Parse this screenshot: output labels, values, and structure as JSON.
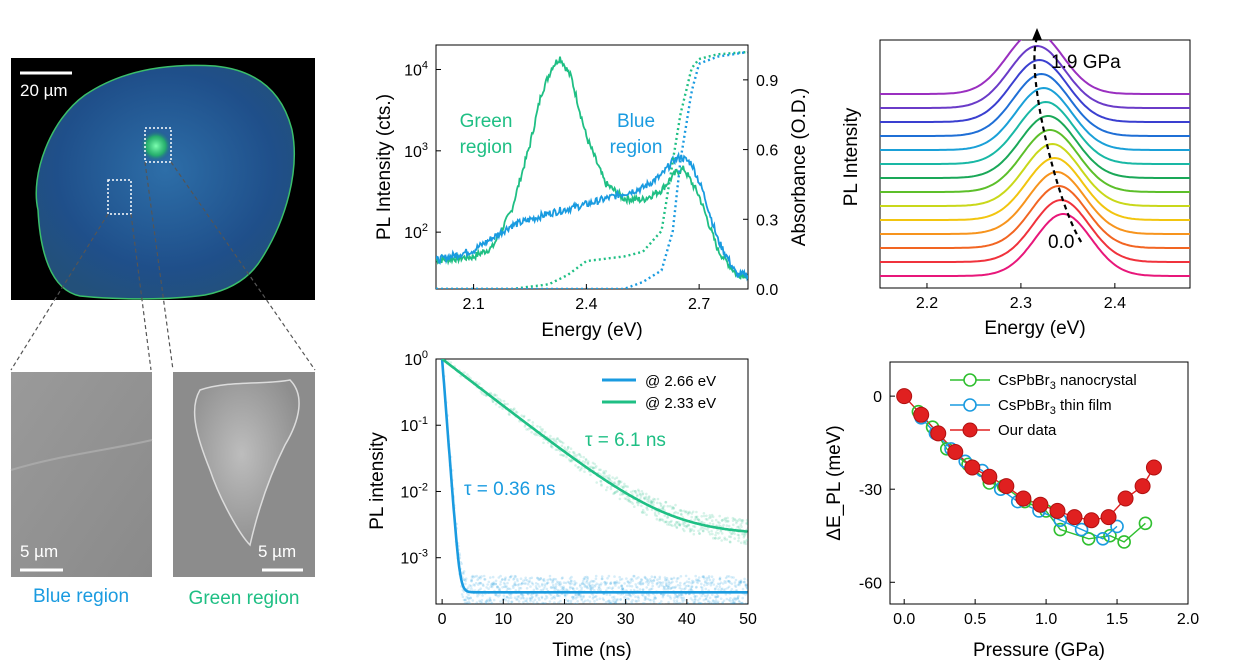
{
  "micrograph": {
    "scale_top": "20 µm",
    "scale_blue": "5 µm",
    "scale_green": "5 µm",
    "caption_blue": "Blue region",
    "caption_green": "Green region",
    "colors": {
      "blue_caption": "#1a9be0",
      "green_caption": "#1fbf84"
    }
  },
  "chart_data": [
    {
      "id": "pl-absorbance",
      "type": "line",
      "xlabel": "Energy (eV)",
      "ylabel": "PL Intensity (cts.)",
      "y2label": "Absorbance (O.D.)",
      "xlim": [
        2.0,
        2.83
      ],
      "ylim": [
        20,
        20000
      ],
      "yscale": "log",
      "y2lim": [
        0,
        1.05
      ],
      "xticks": [
        "2.1",
        "2.4",
        "2.7"
      ],
      "yticks": [
        "10^2",
        "10^3",
        "10^4"
      ],
      "y2ticks": [
        "0.0",
        "0.3",
        "0.6",
        "0.9"
      ],
      "annotations": [
        {
          "line1": "Green",
          "line2": "region",
          "color": "#1fbf84"
        },
        {
          "line1": "Blue",
          "line2": "region",
          "color": "#1a9be0"
        }
      ],
      "series": [
        {
          "color": "#1fbf84",
          "style": "solid",
          "axis": "left",
          "x": [
            2.0,
            2.1,
            2.15,
            2.2,
            2.25,
            2.28,
            2.31,
            2.33,
            2.36,
            2.4,
            2.45,
            2.5,
            2.55,
            2.6,
            2.64,
            2.66,
            2.7,
            2.75,
            2.8
          ],
          "y": [
            45,
            50,
            65,
            180,
            1200,
            5000,
            11000,
            14000,
            8000,
            1500,
            400,
            260,
            250,
            330,
            550,
            600,
            280,
            60,
            30
          ]
        },
        {
          "color": "#1a9be0",
          "style": "solid",
          "axis": "left",
          "x": [
            2.0,
            2.1,
            2.2,
            2.3,
            2.4,
            2.5,
            2.55,
            2.6,
            2.63,
            2.65,
            2.68,
            2.71,
            2.75,
            2.8
          ],
          "y": [
            45,
            60,
            120,
            170,
            220,
            300,
            350,
            500,
            750,
            850,
            700,
            320,
            80,
            30
          ]
        },
        {
          "color": "#1fbf84",
          "style": "dotted",
          "axis": "right",
          "x": [
            2.0,
            2.2,
            2.3,
            2.35,
            2.4,
            2.5,
            2.55,
            2.6,
            2.62,
            2.65,
            2.68,
            2.7,
            2.75,
            2.83
          ],
          "y": [
            0.0,
            0.0,
            0.02,
            0.06,
            0.12,
            0.14,
            0.16,
            0.25,
            0.45,
            0.75,
            0.95,
            0.99,
            1.01,
            1.02
          ]
        },
        {
          "color": "#1a9be0",
          "style": "dotted",
          "axis": "right",
          "x": [
            2.0,
            2.5,
            2.55,
            2.6,
            2.63,
            2.65,
            2.68,
            2.7,
            2.75,
            2.83
          ],
          "y": [
            0.0,
            0.0,
            0.03,
            0.08,
            0.25,
            0.55,
            0.85,
            0.97,
            1.0,
            1.02
          ]
        }
      ]
    },
    {
      "id": "pressure-pl",
      "type": "line",
      "xlabel": "Energy (eV)",
      "ylabel": "PL Intensity",
      "xlim": [
        2.15,
        2.48
      ],
      "xticks": [
        "2.2",
        "2.3",
        "2.4"
      ],
      "annotations": [
        "1.9 GPa",
        "0.0"
      ],
      "offset_spectra": 14,
      "peak_energy_start": 2.345,
      "peak_energy_end": 2.315,
      "colors": [
        "#e8177a",
        "#f0323c",
        "#f26522",
        "#f7941d",
        "#f2c50f",
        "#c9d81a",
        "#5cbf2a",
        "#1aa858",
        "#19b8a5",
        "#1aa0d8",
        "#1f6fd6",
        "#3a3fd0",
        "#6a3bc8",
        "#9a2fc0"
      ]
    },
    {
      "id": "pl-decay",
      "type": "line",
      "xlabel": "Time (ns)",
      "ylabel": "PL intensity",
      "xlim": [
        -1,
        50
      ],
      "ylim": [
        0.0002,
        1
      ],
      "yscale": "log",
      "xticks": [
        "0",
        "10",
        "20",
        "30",
        "40",
        "50"
      ],
      "yticks": [
        "10^0",
        "10^-1",
        "10^-2",
        "10^-3"
      ],
      "legend": [
        "@ 2.66 eV",
        "@ 2.33 eV"
      ],
      "annotations": [
        "τ = 6.1 ns",
        "τ = 0.36 ns"
      ],
      "series": [
        {
          "name": "@ 2.66 eV",
          "color": "#1a9be0",
          "tau_ns": 0.36,
          "baseline": 0.0003
        },
        {
          "name": "@ 2.33 eV",
          "color": "#1fbf84",
          "tau_ns": 6.1,
          "baseline": 0.0022
        }
      ]
    },
    {
      "id": "shift-vs-pressure",
      "type": "scatter",
      "xlabel": "Pressure (GPa)",
      "ylabel": "ΔE_PL (meV)",
      "xlim": [
        -0.1,
        2.0
      ],
      "ylim": [
        -67,
        11
      ],
      "xticks": [
        "0.0",
        "0.5",
        "1.0",
        "1.5",
        "2.0"
      ],
      "yticks": [
        "0",
        "-30",
        "-60"
      ],
      "legend_placement": "top-left",
      "series": [
        {
          "name": "CsPbBr3 nanocrystal",
          "color": "#2fbf2f",
          "marker": "open-circle",
          "x": [
            0.1,
            0.2,
            0.3,
            0.45,
            0.6,
            0.7,
            0.85,
            1.0,
            1.1,
            1.3,
            1.45,
            1.55,
            1.7
          ],
          "y": [
            -5,
            -10,
            -17,
            -22,
            -28,
            -29,
            -34,
            -37,
            -43,
            -46,
            -45,
            -47,
            -41
          ]
        },
        {
          "name": "CsPbBr3 thin film",
          "color": "#1a9be0",
          "marker": "open-circle",
          "x": [
            0.12,
            0.22,
            0.33,
            0.43,
            0.55,
            0.68,
            0.8,
            0.95,
            1.1,
            1.25,
            1.4,
            1.5
          ],
          "y": [
            -7,
            -12,
            -17,
            -21,
            -24,
            -30,
            -34,
            -37,
            -40,
            -43,
            -46,
            -42
          ]
        },
        {
          "name": "Our data",
          "color": "#e02020",
          "marker": "filled-circle",
          "x": [
            0.0,
            0.12,
            0.24,
            0.36,
            0.48,
            0.6,
            0.72,
            0.84,
            0.96,
            1.08,
            1.2,
            1.32,
            1.44,
            1.56,
            1.68,
            1.76
          ],
          "y": [
            0,
            -6,
            -12,
            -18,
            -23,
            -26,
            -29,
            -33,
            -35,
            -37,
            -39,
            -40,
            -39,
            -33,
            -29,
            -23
          ]
        }
      ]
    }
  ]
}
